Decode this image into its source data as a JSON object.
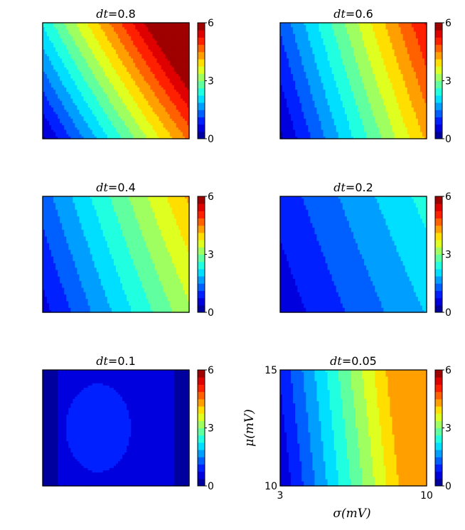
{
  "chart_data": [
    {
      "type": "heatmap",
      "title": "dt = 0.8",
      "title_var": "dt",
      "title_value": "0.8",
      "colorbar": {
        "min": 0,
        "max": 6,
        "ticks": [
          "0",
          "3",
          "6"
        ],
        "levels": 16
      },
      "field": {
        "base": 0.3,
        "gx": 4.3,
        "gy": 2.0,
        "nonlinear": 0.5
      }
    },
    {
      "type": "heatmap",
      "title": "dt = 0.6",
      "title_var": "dt",
      "title_value": "0.6",
      "colorbar": {
        "min": 0,
        "max": 6,
        "ticks": [
          "0",
          "3",
          "6"
        ],
        "levels": 16
      },
      "field": {
        "base": 0.3,
        "gx": 3.9,
        "gy": 0.9,
        "nonlinear": 0.2
      }
    },
    {
      "type": "heatmap",
      "title": "dt = 0.4",
      "title_var": "dt",
      "title_value": "0.4",
      "colorbar": {
        "min": 0,
        "max": 6,
        "ticks": [
          "0",
          "3",
          "6"
        ],
        "levels": 16
      },
      "field": {
        "base": 0.6,
        "gx": 2.7,
        "gy": 0.7,
        "nonlinear": 0.2
      }
    },
    {
      "type": "heatmap",
      "title": "dt = 0.2",
      "title_var": "dt",
      "title_value": "0.2",
      "colorbar": {
        "min": 0,
        "max": 6,
        "ticks": [
          "0",
          "3",
          "6"
        ],
        "levels": 16
      },
      "field": {
        "base": 0.5,
        "gx": 1.4,
        "gy": 0.4,
        "nonlinear": 0.1
      }
    },
    {
      "type": "heatmap",
      "title": "dt = 0.1",
      "title_var": "dt",
      "title_value": "0.1",
      "colorbar": {
        "min": 0,
        "max": 6,
        "ticks": [
          "0",
          "3",
          "6"
        ],
        "levels": 16
      },
      "field": {
        "base": 0.6,
        "blob": 0.35
      }
    },
    {
      "type": "heatmap",
      "title": "dt = 0.05",
      "title_var": "dt",
      "title_value": "0.05",
      "colorbar": {
        "min": 0,
        "max": 6,
        "ticks": [
          "0",
          "3",
          "6"
        ],
        "levels": 16
      },
      "field": {
        "base": 0.4,
        "gx": 4.6,
        "gy": 0.4,
        "sat": 4.3
      },
      "xlabel": "σ(mV)",
      "ylabel": "μ(mV)",
      "xlim": [
        3,
        10
      ],
      "ylim": [
        10,
        15
      ],
      "xticks": [
        "3",
        "10"
      ],
      "yticks": [
        "10",
        "15"
      ]
    }
  ]
}
